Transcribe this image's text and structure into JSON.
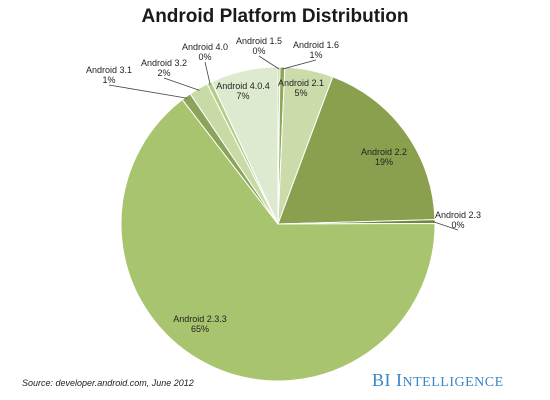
{
  "chart_data": {
    "type": "pie",
    "title": "Android Platform Distribution",
    "slices": [
      {
        "name": "Android 1.5",
        "value": 0.2,
        "label_value": "0%",
        "color": "#a7c170"
      },
      {
        "name": "Android 1.6",
        "value": 0.5,
        "label_value": "1%",
        "color": "#8fa858"
      },
      {
        "name": "Android 2.1",
        "value": 5,
        "label_value": "5%",
        "color": "#cbdcaa"
      },
      {
        "name": "Android 2.2",
        "value": 19,
        "label_value": "19%",
        "color": "#8aa04f"
      },
      {
        "name": "Android 2.3",
        "value": 0.4,
        "label_value": "0%",
        "color": "#6f8a3c"
      },
      {
        "name": "Android 2.3.3",
        "value": 65,
        "label_value": "65%",
        "color": "#a9c46e"
      },
      {
        "name": "Android 3.1",
        "value": 1,
        "label_value": "1%",
        "color": "#8ba45a"
      },
      {
        "name": "Android 3.2",
        "value": 2,
        "label_value": "2%",
        "color": "#c8dba6"
      },
      {
        "name": "Android 4.0",
        "value": 0.5,
        "label_value": "0%",
        "color": "#b4cd85"
      },
      {
        "name": "Android 4.0.4",
        "value": 7,
        "label_value": "7%",
        "color": "#deead0"
      }
    ]
  },
  "footer": {
    "source": "Source: developer.android.com, June 2012",
    "brand_bi": "BI",
    "brand_intelligence_initial": "I",
    "brand_intelligence_rest": "NTELLIGENCE"
  }
}
